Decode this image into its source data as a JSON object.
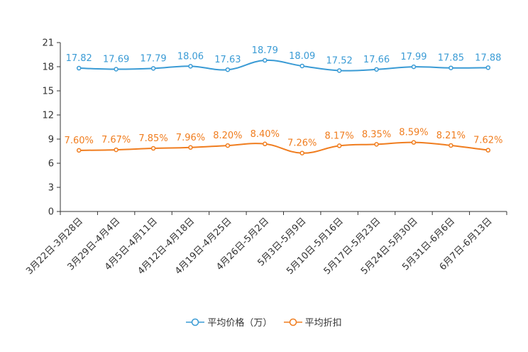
{
  "chart_data": {
    "type": "line",
    "categories": [
      "3月22日-3月28日",
      "3月29日-4月4日",
      "4月5日-4月11日",
      "4月12日-4月18日",
      "4月19日-4月25日",
      "4月26日-5月2日",
      "5月3日-5月9日",
      "5月10日-5月16日",
      "5月17日-5月23日",
      "5月24日-5月30日",
      "5月31日-6月6日",
      "6月7日-6月13日"
    ],
    "series": [
      {
        "name": "平均价格（万）",
        "color": "#3a9bd5",
        "values": [
          17.82,
          17.69,
          17.79,
          18.06,
          17.63,
          18.79,
          18.09,
          17.52,
          17.66,
          17.99,
          17.85,
          17.88
        ],
        "labels": [
          "17.82",
          "17.69",
          "17.79",
          "18.06",
          "17.63",
          "18.79",
          "18.09",
          "17.52",
          "17.66",
          "17.99",
          "17.85",
          "17.88"
        ]
      },
      {
        "name": "平均折扣",
        "color": "#f07d1f",
        "values": [
          7.6,
          7.67,
          7.85,
          7.96,
          8.2,
          8.4,
          7.26,
          8.17,
          8.35,
          8.59,
          8.21,
          7.62
        ],
        "labels": [
          "7.60%",
          "7.67%",
          "7.85%",
          "7.96%",
          "8.20%",
          "8.40%",
          "7.26%",
          "8.17%",
          "8.35%",
          "8.59%",
          "8.21%",
          "7.62%"
        ]
      }
    ],
    "y_ticks": [
      "0",
      "3",
      "6",
      "9",
      "12",
      "15",
      "18",
      "21"
    ],
    "ylim": [
      0,
      21
    ],
    "title": "",
    "xlabel": "",
    "ylabel": "",
    "legend_position": "bottom-center",
    "grid": false
  }
}
